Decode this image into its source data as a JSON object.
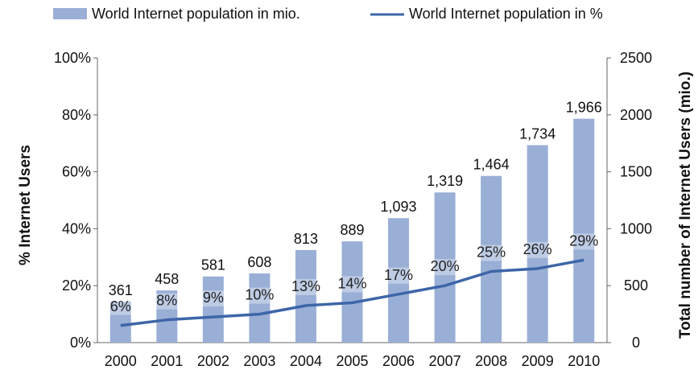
{
  "chart_data": {
    "type": "bar",
    "categories": [
      "2000",
      "2001",
      "2002",
      "2003",
      "2004",
      "2005",
      "2006",
      "2007",
      "2008",
      "2009",
      "2010"
    ],
    "series": [
      {
        "name": "World Internet population in mio.",
        "kind": "bar",
        "axis": "right",
        "values": [
          361,
          458,
          581,
          608,
          813,
          889,
          1093,
          1319,
          1464,
          1734,
          1966
        ],
        "labels": [
          "361",
          "458",
          "581",
          "608",
          "813",
          "889",
          "1,093",
          "1,319",
          "1,464",
          "1,734",
          "1,966"
        ],
        "color": "#9aafd6"
      },
      {
        "name": "World Internet population in %",
        "kind": "line",
        "axis": "left",
        "values": [
          6,
          8,
          9,
          10,
          13,
          14,
          17,
          20,
          25,
          26,
          29
        ],
        "labels": [
          "6%",
          "8%",
          "9%",
          "10%",
          "13%",
          "14%",
          "17%",
          "20%",
          "25%",
          "26%",
          "29%"
        ],
        "color": "#3d66a8"
      }
    ],
    "ylabel_left": "% Internet Users",
    "ylabel_right": "Total number of Internet Users (mio.)",
    "ylim_left": [
      0,
      100
    ],
    "ylim_right": [
      0,
      2500
    ],
    "yticks_left": [
      "0%",
      "20%",
      "40%",
      "60%",
      "80%",
      "100%"
    ],
    "yticks_right": [
      "0",
      "500",
      "1000",
      "1500",
      "2000",
      "2500"
    ],
    "grid": false,
    "legend_position": "top"
  }
}
